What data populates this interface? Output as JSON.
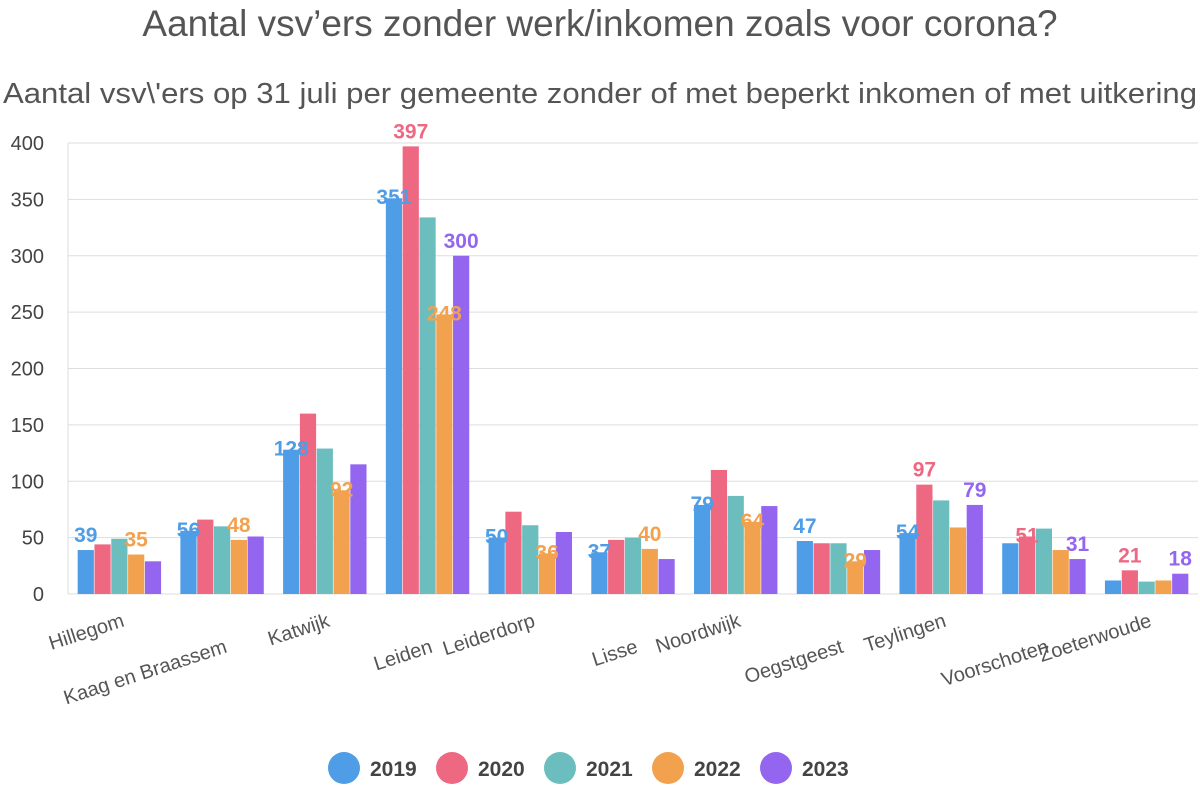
{
  "chart_data": {
    "type": "bar",
    "title": "Aantal vsv’ers zonder werk/inkomen zoals voor corona?",
    "subtitle": "Aantal vsv\\'ers op 31 juli per gemeente zonder of met beperkt inkomen of met uitkering",
    "categories": [
      "Hillegom",
      "Kaag en Braassem",
      "Katwijk",
      "Leiden",
      "Leiderdorp",
      "Lisse",
      "Noordwijk",
      "Oegstgeest",
      "Teylingen",
      "Voorschoten",
      "Zoeterwoude"
    ],
    "series": [
      {
        "name": "2019",
        "color": "#4e9de6",
        "values": [
          39,
          56,
          128,
          351,
          50,
          37,
          79,
          47,
          54,
          45,
          12
        ]
      },
      {
        "name": "2020",
        "color": "#ee6882",
        "values": [
          44,
          66,
          160,
          397,
          73,
          48,
          110,
          45,
          97,
          51,
          21
        ]
      },
      {
        "name": "2021",
        "color": "#6cbdbd",
        "values": [
          49,
          60,
          129,
          334,
          61,
          50,
          87,
          45,
          83,
          58,
          11
        ]
      },
      {
        "name": "2022",
        "color": "#f2a24f",
        "values": [
          35,
          48,
          92,
          248,
          36,
          40,
          64,
          29,
          59,
          39,
          12
        ]
      },
      {
        "name": "2023",
        "color": "#9466f0",
        "values": [
          29,
          51,
          115,
          300,
          55,
          31,
          78,
          39,
          79,
          31,
          18
        ]
      }
    ],
    "data_labels": [
      {
        "category": "Hillegom",
        "series": "2019",
        "text": "39"
      },
      {
        "category": "Hillegom",
        "series": "2022",
        "text": "35"
      },
      {
        "category": "Kaag en Braassem",
        "series": "2019",
        "text": "56"
      },
      {
        "category": "Kaag en Braassem",
        "series": "2022",
        "text": "48"
      },
      {
        "category": "Katwijk",
        "series": "2019",
        "text": "128"
      },
      {
        "category": "Katwijk",
        "series": "2022",
        "text": "92"
      },
      {
        "category": "Leiden",
        "series": "2019",
        "text": "351"
      },
      {
        "category": "Leiden",
        "series": "2020",
        "text": "397"
      },
      {
        "category": "Leiden",
        "series": "2022",
        "text": "248"
      },
      {
        "category": "Leiden",
        "series": "2023",
        "text": "300"
      },
      {
        "category": "Leiderdorp",
        "series": "2019",
        "text": "50"
      },
      {
        "category": "Leiderdorp",
        "series": "2022",
        "text": "36"
      },
      {
        "category": "Lisse",
        "series": "2019",
        "text": "37"
      },
      {
        "category": "Lisse",
        "series": "2022",
        "text": "40"
      },
      {
        "category": "Noordwijk",
        "series": "2019",
        "text": "79"
      },
      {
        "category": "Noordwijk",
        "series": "2022",
        "text": "64"
      },
      {
        "category": "Oegstgeest",
        "series": "2019",
        "text": "47"
      },
      {
        "category": "Oegstgeest",
        "series": "2022",
        "text": "29"
      },
      {
        "category": "Teylingen",
        "series": "2019",
        "text": "54"
      },
      {
        "category": "Teylingen",
        "series": "2020",
        "text": "97"
      },
      {
        "category": "Teylingen",
        "series": "2023",
        "text": "79"
      },
      {
        "category": "Voorschoten",
        "series": "2020",
        "text": "51"
      },
      {
        "category": "Voorschoten",
        "series": "2023",
        "text": "31"
      },
      {
        "category": "Zoeterwoude",
        "series": "2020",
        "text": "21"
      },
      {
        "category": "Zoeterwoude",
        "series": "2023",
        "text": "18"
      }
    ],
    "xlabel": "",
    "ylabel": "",
    "ylim": [
      0,
      400
    ],
    "yticks": [
      0,
      50,
      100,
      150,
      200,
      250,
      300,
      350,
      400
    ],
    "grid": true,
    "legend": "bottom-center"
  }
}
